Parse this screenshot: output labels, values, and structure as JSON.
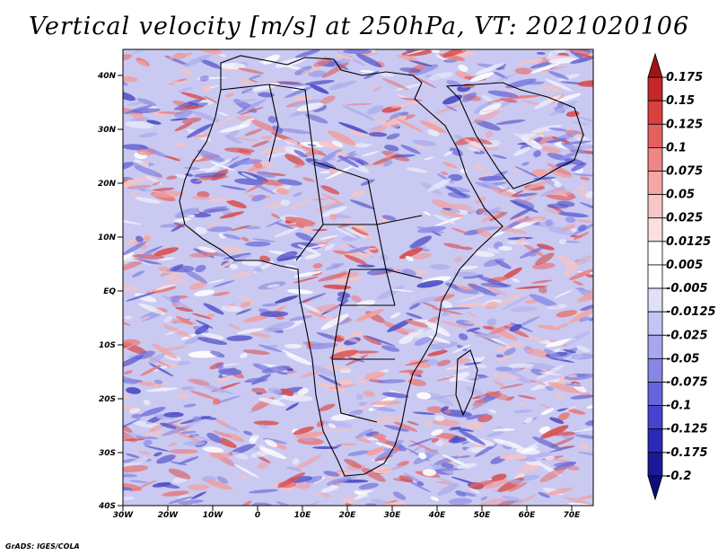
{
  "title": "Vertical velocity [m/s] at 250hPa, VT: 2021020106",
  "credit": "GrADS: IGES/COLA",
  "map": {
    "lat_labels": [
      "40N",
      "30N",
      "20N",
      "10N",
      "EQ",
      "10S",
      "20S",
      "30S",
      "40S"
    ],
    "lon_labels": [
      "30W",
      "20W",
      "10W",
      "0",
      "10E",
      "20E",
      "30E",
      "40E",
      "50E",
      "60E",
      "70E"
    ]
  },
  "colorbar": {
    "labels": [
      "0.175",
      "0.15",
      "0.125",
      "0.1",
      "0.075",
      "0.05",
      "0.025",
      "0.0125",
      "0.005",
      "-0.005",
      "-0.0125",
      "-0.025",
      "-0.05",
      "-0.075",
      "-0.1",
      "-0.125",
      "-0.175",
      "-0.2"
    ],
    "colors": [
      "#a01515",
      "#c42828",
      "#d94040",
      "#e65f5f",
      "#ef8585",
      "#f4a7a7",
      "#f8c6c6",
      "#fbe0e0",
      "#ffffff",
      "#ffffff",
      "#e0e0fb",
      "#c5c5f5",
      "#a7a7ee",
      "#8686e6",
      "#6464dc",
      "#4444cf",
      "#2a2ab8",
      "#1a1a99",
      "#0e0e7a"
    ]
  }
}
